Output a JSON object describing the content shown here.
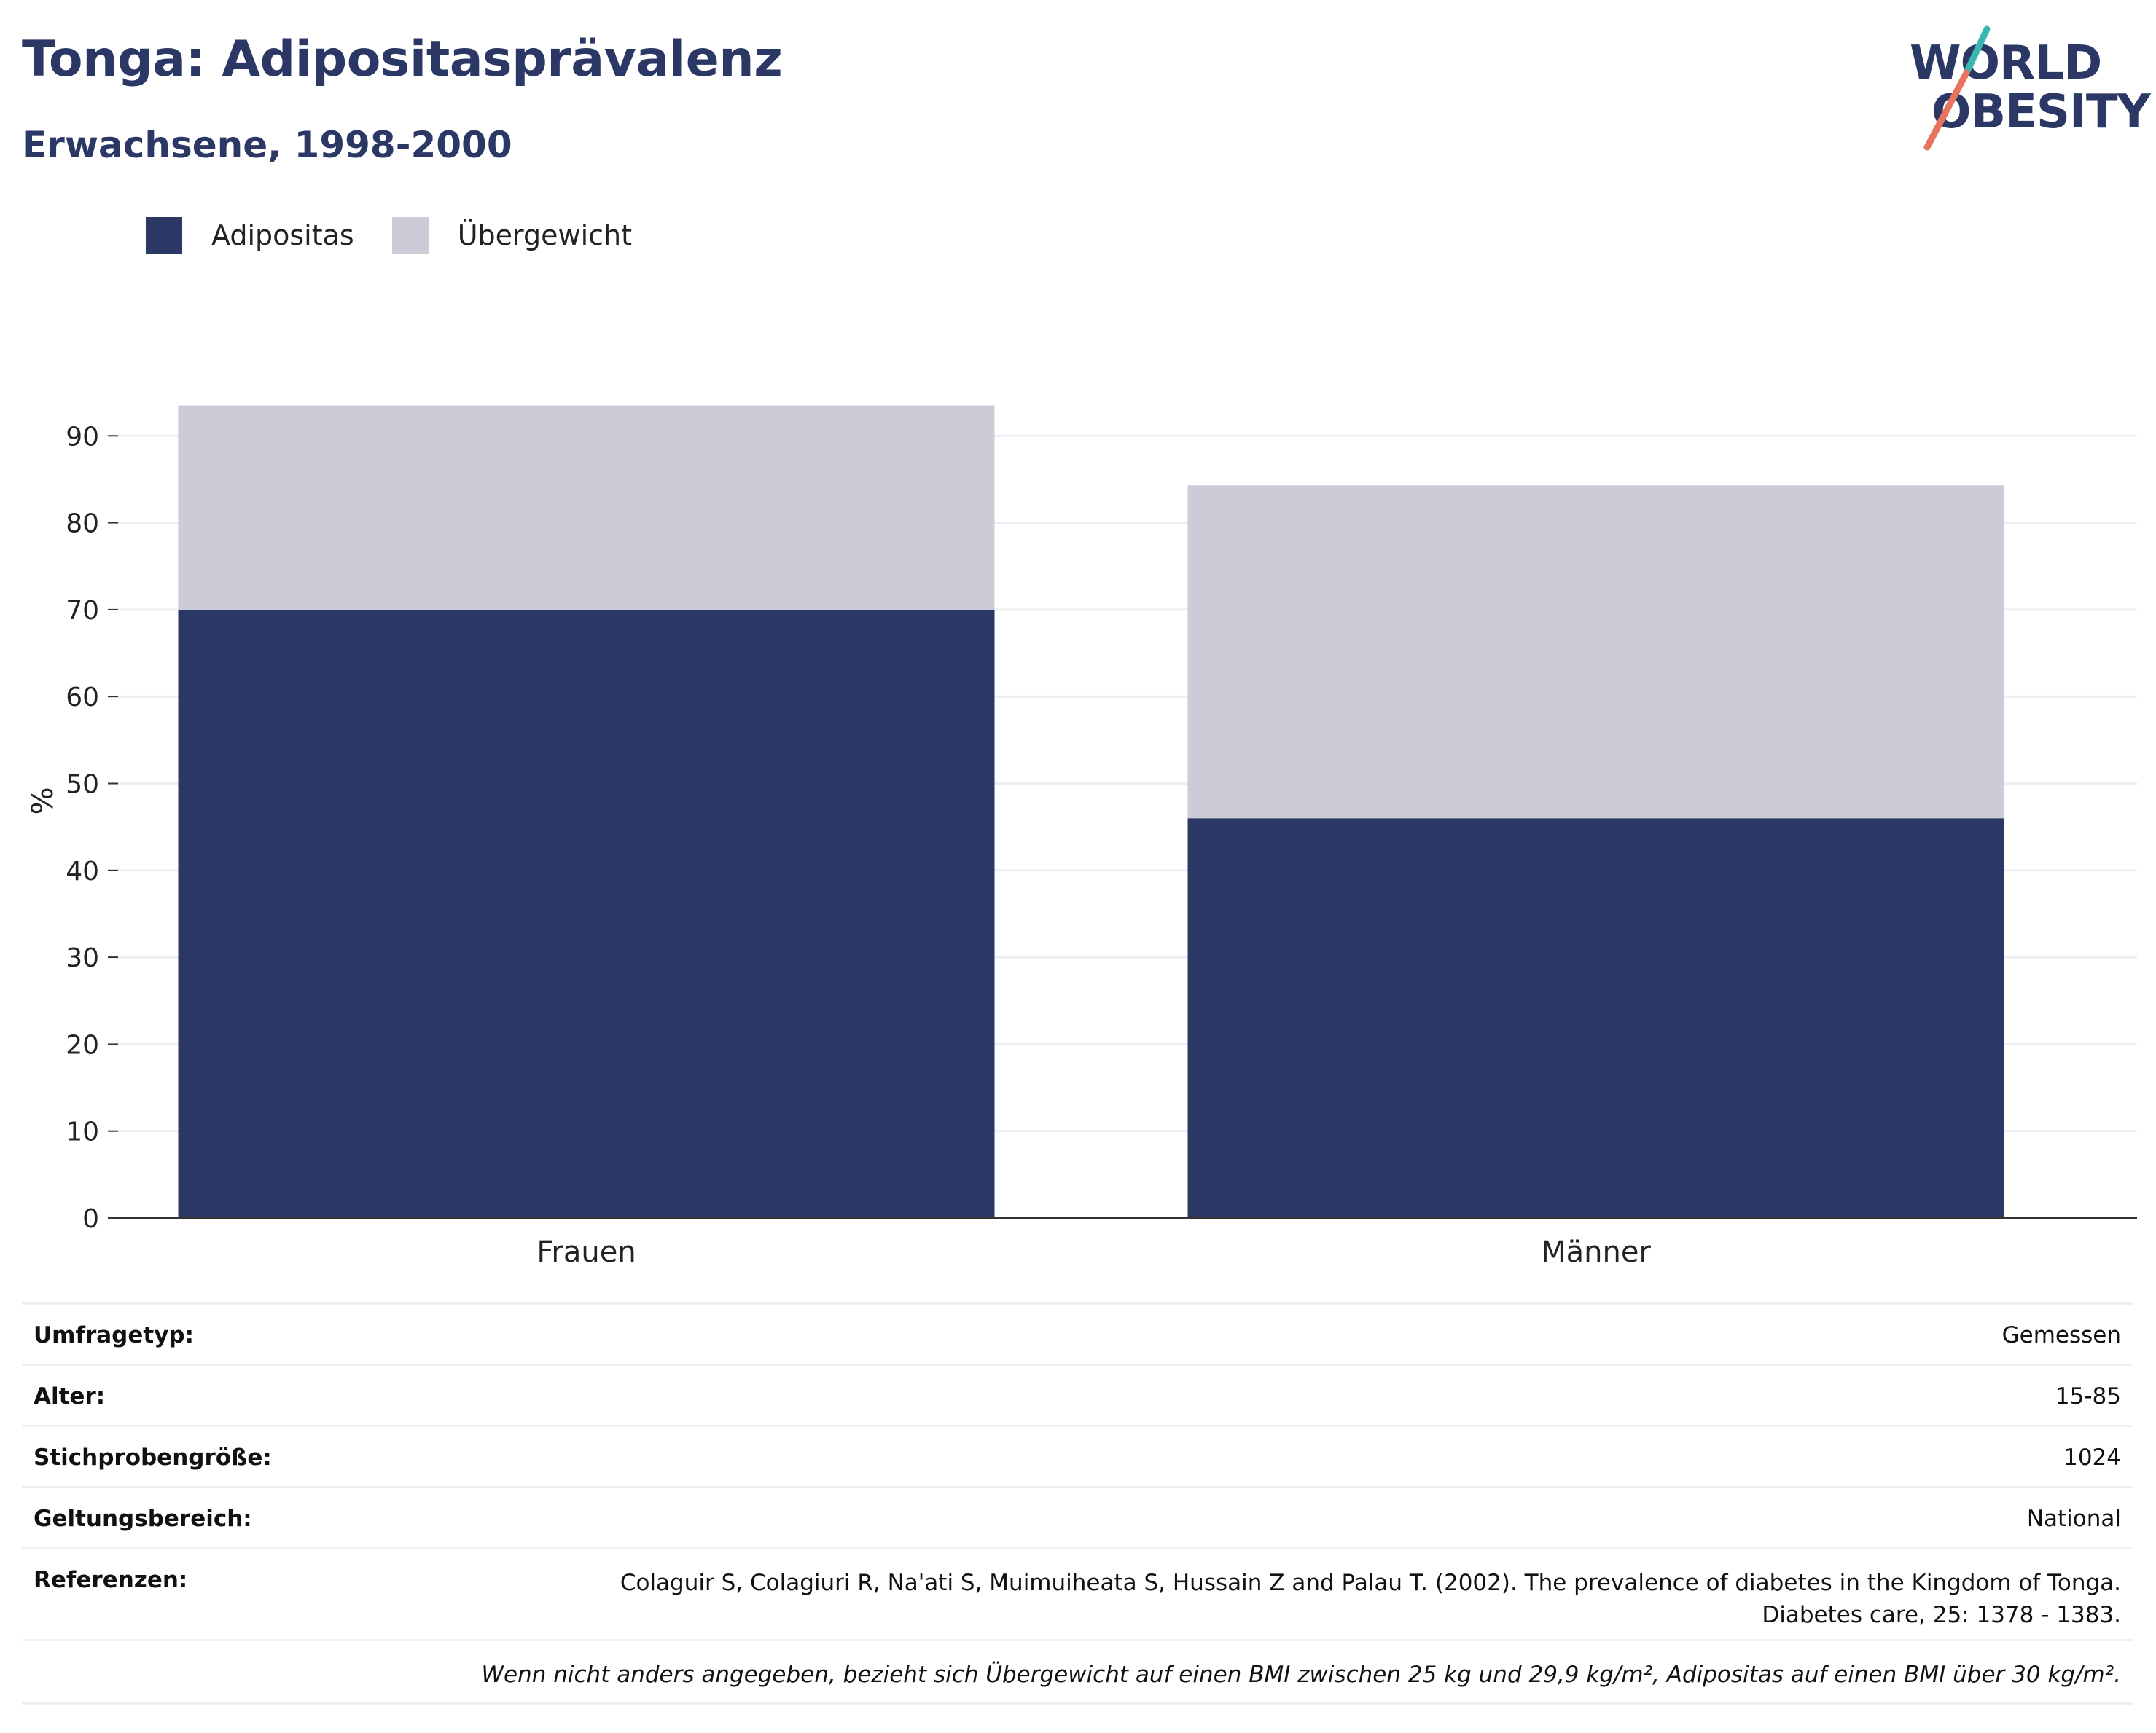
{
  "header": {
    "title": "Tonga: Adipositasprävalenz",
    "subtitle": "Erwachsene, 1998-2000"
  },
  "logo": {
    "line1": "WORLD",
    "line2": "OBESITY",
    "accent_teal": "#3bb5b0",
    "accent_red": "#e8735f"
  },
  "legend": {
    "items": [
      {
        "label": "Adipositas",
        "color": "#2b3765"
      },
      {
        "label": "Übergewicht",
        "color": "#cbccd7"
      }
    ]
  },
  "chart_data": {
    "type": "bar",
    "stacked": true,
    "categories": [
      "Frauen",
      "Männer"
    ],
    "series": [
      {
        "name": "Adipositas",
        "color": "#2b3765",
        "values": [
          70.0,
          46.0
        ]
      },
      {
        "name": "Übergewicht",
        "color": "#cbccd7",
        "values": [
          23.5,
          38.3
        ]
      }
    ],
    "ylabel": "%",
    "ylim": [
      0,
      95
    ],
    "yticks": [
      0,
      10,
      20,
      30,
      40,
      50,
      60,
      70,
      80,
      90
    ],
    "grid": true,
    "legend_position": "top-left"
  },
  "info": {
    "rows": [
      {
        "label": "Umfragetyp:",
        "value": "Gemessen"
      },
      {
        "label": "Alter:",
        "value": "15-85"
      },
      {
        "label": "Stichprobengröße:",
        "value": "1024"
      },
      {
        "label": "Geltungsbereich:",
        "value": "National"
      }
    ],
    "reference": {
      "label": "Referenzen:",
      "line1": "Colaguir S, Colagiuri R, Na'ati S, Muimuiheata S, Hussain Z and Palau T. (2002). The prevalence of diabetes in the Kingdom of Tonga.",
      "line2": "Diabetes care, 25: 1378 - 1383."
    },
    "footnote": "Wenn nicht anders angegeben, bezieht sich Übergewicht auf einen BMI zwischen 25 kg und 29,9 kg/m², Adipositas auf einen BMI über 30 kg/m²."
  }
}
